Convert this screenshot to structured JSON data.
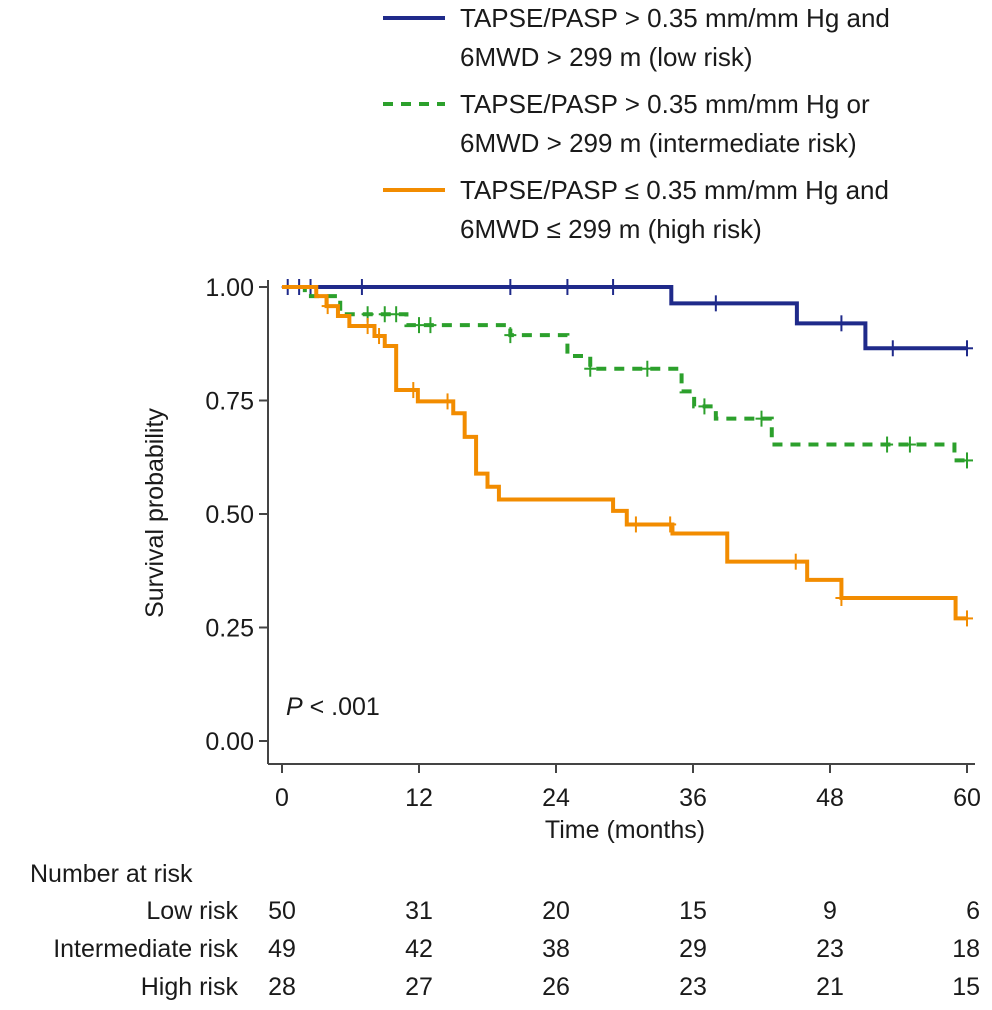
{
  "chart_data": {
    "type": "line",
    "subtype": "kaplan-meier",
    "xlabel": "Time (months)",
    "ylabel": "Survival probability",
    "xlim": [
      0,
      60
    ],
    "ylim": [
      0,
      1
    ],
    "xticks": [
      "0",
      "12",
      "24",
      "36",
      "48",
      "60"
    ],
    "xtick_values": [
      0,
      12,
      24,
      36,
      48,
      60
    ],
    "yticks": [
      "0.00",
      "0.25",
      "0.50",
      "0.75",
      "1.00"
    ],
    "ytick_values": [
      0,
      0.25,
      0.5,
      0.75,
      1
    ],
    "grid": false,
    "legend_position": "top",
    "annotation": {
      "italic": "P",
      "rest": " < .001"
    },
    "series": [
      {
        "name": "low",
        "legend": [
          "TAPSE/PASP > 0.35 mm/mm Hg and",
          "6MWD > 299 m (low risk)"
        ],
        "color": "#1f2a8a",
        "dashed": false,
        "steps": [
          [
            0,
            1.0
          ],
          [
            34.1,
            0.964
          ],
          [
            45.1,
            0.92
          ],
          [
            51.1,
            0.865
          ],
          [
            60,
            0.865
          ]
        ],
        "censored": [
          0.5,
          1.5,
          2.5,
          7,
          20,
          25,
          29,
          38,
          49,
          53.5,
          60
        ]
      },
      {
        "name": "intermediate",
        "legend": [
          "TAPSE/PASP > 0.35 mm/mm Hg or",
          "6MWD > 299 m (intermediate risk)"
        ],
        "color": "#2ca02c",
        "dashed": true,
        "steps": [
          [
            0,
            1.0
          ],
          [
            2,
            0.98
          ],
          [
            5.1,
            0.94
          ],
          [
            10.9,
            0.916
          ],
          [
            20,
            0.894
          ],
          [
            25,
            0.848
          ],
          [
            27,
            0.82
          ],
          [
            35,
            0.77
          ],
          [
            36.1,
            0.737
          ],
          [
            38,
            0.71
          ],
          [
            42.9,
            0.653
          ],
          [
            58.9,
            0.618
          ],
          [
            60,
            0.618
          ]
        ],
        "censored": [
          7.5,
          9,
          10,
          12,
          13,
          20,
          27,
          32,
          37,
          42,
          53,
          55,
          60
        ]
      },
      {
        "name": "high",
        "legend": [
          "TAPSE/PASP ≤ 0.35 mm/mm Hg and",
          "6MWD ≤ 299 m (high risk)"
        ],
        "color": "#f28c00",
        "dashed": false,
        "steps": [
          [
            0,
            1.0
          ],
          [
            3,
            0.98
          ],
          [
            3.9,
            0.958
          ],
          [
            4.9,
            0.936
          ],
          [
            5.9,
            0.914
          ],
          [
            8.1,
            0.892
          ],
          [
            9,
            0.87
          ],
          [
            10,
            0.773
          ],
          [
            11.9,
            0.748
          ],
          [
            15,
            0.722
          ],
          [
            16,
            0.67
          ],
          [
            17,
            0.589
          ],
          [
            18,
            0.56
          ],
          [
            19,
            0.532
          ],
          [
            29,
            0.507
          ],
          [
            30.2,
            0.477
          ],
          [
            34.2,
            0.457
          ],
          [
            39,
            0.395
          ],
          [
            46,
            0.355
          ],
          [
            49,
            0.315
          ],
          [
            59,
            0.27
          ],
          [
            60,
            0.27
          ]
        ],
        "censored": [
          4,
          7.5,
          8.5,
          11.5,
          14.5,
          31,
          34,
          45,
          49,
          60
        ]
      }
    ],
    "risk_table": {
      "title": "Number at risk",
      "rows": [
        {
          "label": "Low risk",
          "values": [
            "50",
            "31",
            "20",
            "15",
            "9",
            "6"
          ]
        },
        {
          "label": "Intermediate risk",
          "values": [
            "49",
            "42",
            "38",
            "29",
            "23",
            "18"
          ]
        },
        {
          "label": "High risk",
          "values": [
            "28",
            "27",
            "26",
            "23",
            "21",
            "15"
          ]
        }
      ]
    }
  }
}
